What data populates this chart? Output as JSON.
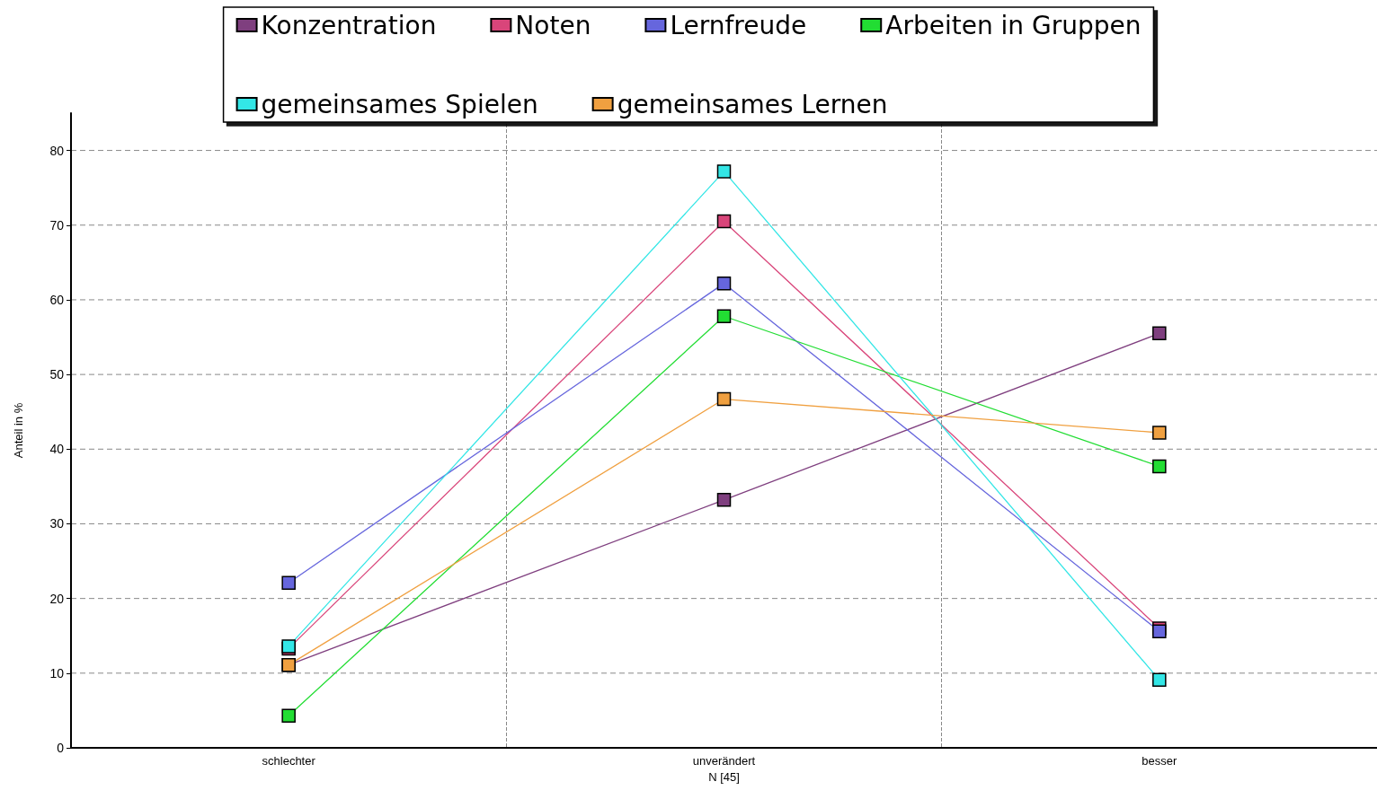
{
  "chart_data": {
    "type": "line",
    "xlabel": "N [45]",
    "ylabel": "Anteil in %",
    "categories": [
      "schlechter",
      "unverändert",
      "besser"
    ],
    "ylim": [
      0,
      85
    ],
    "yticks": [
      0,
      10,
      20,
      30,
      40,
      50,
      60,
      70,
      80
    ],
    "grid": true,
    "legend": "top",
    "marker": "square",
    "line_style": "solid",
    "series": [
      {
        "name": "Konzentration",
        "color": "#7f3f7f",
        "values": [
          11.1,
          33.2,
          55.5
        ]
      },
      {
        "name": "Noten",
        "color": "#d9457a",
        "values": [
          13.3,
          70.5,
          16.0
        ]
      },
      {
        "name": "Lernfreude",
        "color": "#6666dd",
        "values": [
          22.1,
          62.2,
          15.6
        ]
      },
      {
        "name": "Arbeiten in Gruppen",
        "color": "#22dd33",
        "values": [
          4.3,
          57.8,
          37.7
        ]
      },
      {
        "name": "gemeinsames Spielen",
        "color": "#33e6e6",
        "values": [
          13.6,
          77.2,
          9.1
        ]
      },
      {
        "name": "gemeinsames Lernen",
        "color": "#f0a040",
        "values": [
          11.1,
          46.7,
          42.2
        ]
      }
    ]
  }
}
